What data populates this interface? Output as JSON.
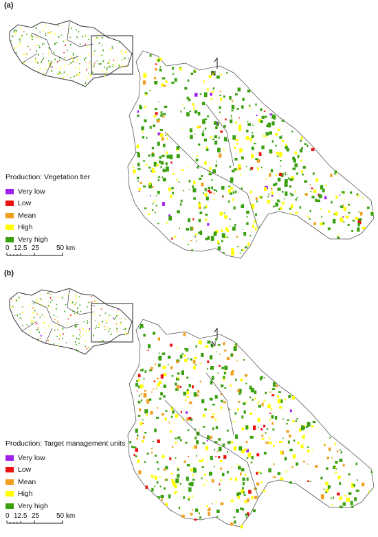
{
  "panels": [
    {
      "label": "(a)",
      "legend_title": "Production: Vegetation tier",
      "legend": [
        {
          "label": "Very low",
          "color": "#a020f0"
        },
        {
          "label": "Low",
          "color": "#ee1111"
        },
        {
          "label": "Mean",
          "color": "#f0a020"
        },
        {
          "label": "High",
          "color": "#ffff00"
        },
        {
          "label": "Very high",
          "color": "#3aa010"
        }
      ],
      "scale": {
        "t0": "0",
        "t1": "12.5",
        "t2": "25",
        "t3": "50 km"
      },
      "north": "N",
      "palette_weights": {
        "very_high": 0.62,
        "high": 0.28,
        "mean": 0.05,
        "low": 0.03,
        "very_low": 0.02
      }
    },
    {
      "label": "(b)",
      "legend_title": "Production: Target management units",
      "legend": [
        {
          "label": "Very low",
          "color": "#a020f0"
        },
        {
          "label": "Low",
          "color": "#ee1111"
        },
        {
          "label": "Mean",
          "color": "#f0a020"
        },
        {
          "label": "High",
          "color": "#ffff00"
        },
        {
          "label": "Very high",
          "color": "#3aa010"
        }
      ],
      "scale": {
        "t0": "0",
        "t1": "12.5",
        "t2": "25",
        "t3": "50 km"
      },
      "north": "N",
      "palette_weights": {
        "very_high": 0.5,
        "high": 0.25,
        "mean": 0.18,
        "low": 0.05,
        "very_low": 0.02
      }
    }
  ]
}
